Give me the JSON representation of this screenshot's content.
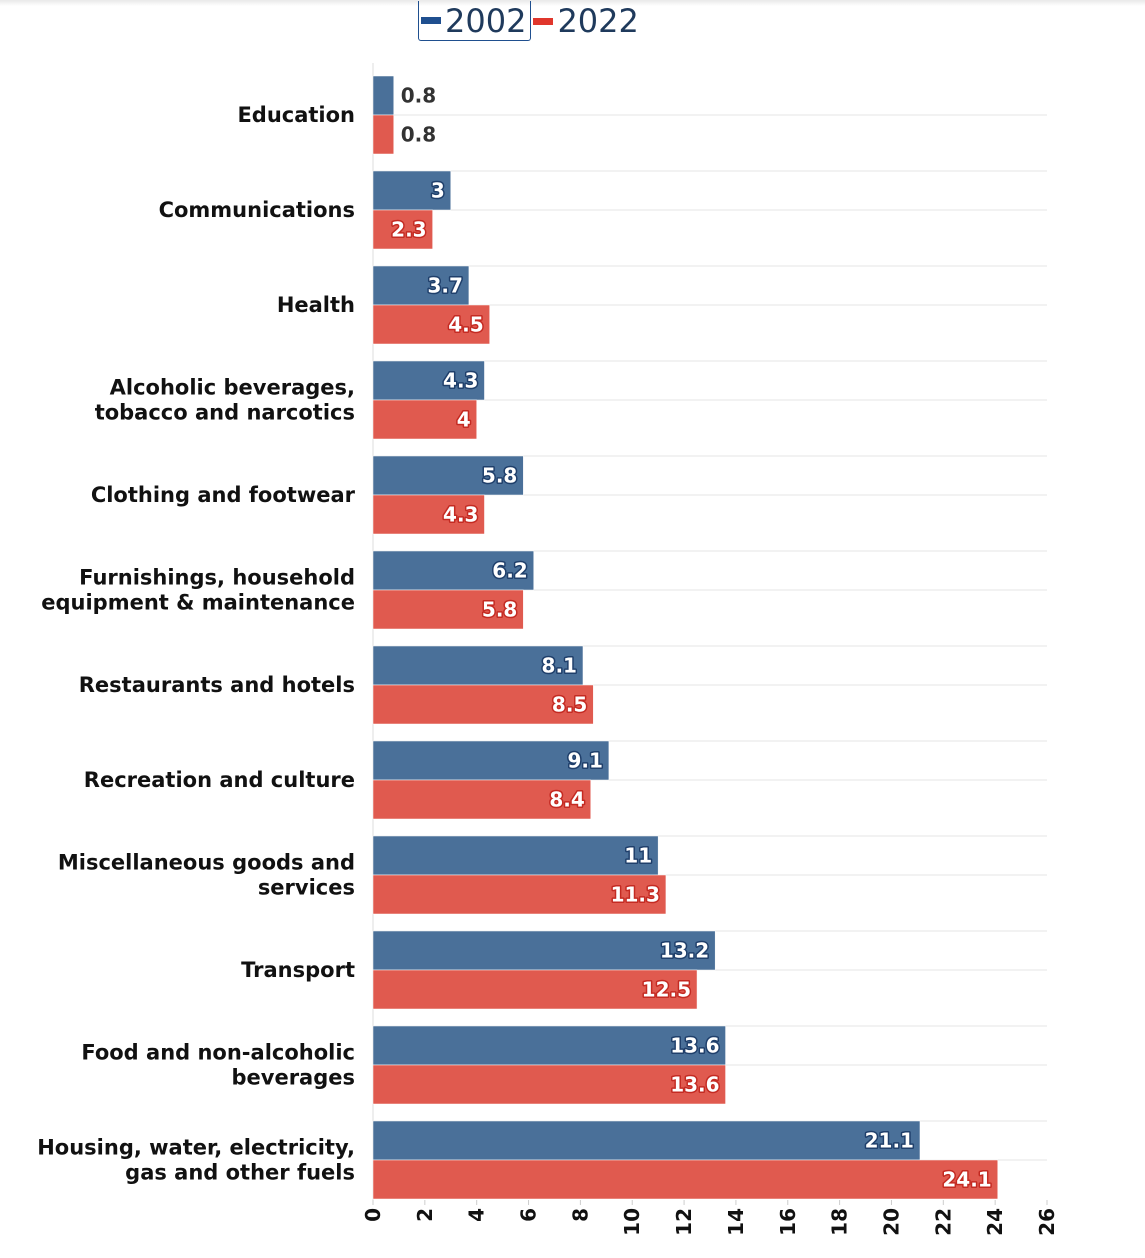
{
  "chart_data": {
    "type": "bar",
    "orientation": "horizontal",
    "categories": [
      "Education",
      "Communications",
      "Health",
      "Alcoholic beverages, tobacco and narcotics",
      "Clothing and footwear",
      "Furnishings, household equipment & maintenance",
      "Restaurants and hotels",
      "Recreation and culture",
      "Miscellaneous goods and services",
      "Transport",
      "Food and non-alcoholic beverages",
      "Housing, water, electricity, gas and other fuels"
    ],
    "category_lines": [
      [
        "Education"
      ],
      [
        "Communications"
      ],
      [
        "Health"
      ],
      [
        "Alcoholic beverages,",
        "tobacco and narcotics"
      ],
      [
        "Clothing and footwear"
      ],
      [
        "Furnishings, household",
        "equipment & maintenance"
      ],
      [
        "Restaurants and hotels"
      ],
      [
        "Recreation and culture"
      ],
      [
        "Miscellaneous goods and",
        "services"
      ],
      [
        "Transport"
      ],
      [
        "Food and non-alcoholic",
        "beverages"
      ],
      [
        "Housing, water, electricity,",
        "gas and other fuels"
      ]
    ],
    "series": [
      {
        "name": "2002",
        "color": "#4a7099",
        "legend_color": "#1f4f8f",
        "values": [
          0.8,
          3,
          3.7,
          4.3,
          5.8,
          6.2,
          8.1,
          9.1,
          11,
          13.2,
          13.6,
          21.1
        ]
      },
      {
        "name": "2022",
        "color": "#e05a4f",
        "legend_color": "#e0362c",
        "values": [
          0.8,
          2.3,
          4.5,
          4,
          4.3,
          5.8,
          8.5,
          8.4,
          11.3,
          12.5,
          13.6,
          24.1
        ]
      }
    ],
    "xlim": [
      0,
      26
    ],
    "xticks": [
      "0",
      "2",
      "4",
      "6",
      "8",
      "10",
      "12",
      "14",
      "16",
      "18",
      "20",
      "22",
      "24",
      "26"
    ],
    "grid": true,
    "legend_position": "top-center",
    "title": "",
    "xlabel": "",
    "ylabel": ""
  }
}
